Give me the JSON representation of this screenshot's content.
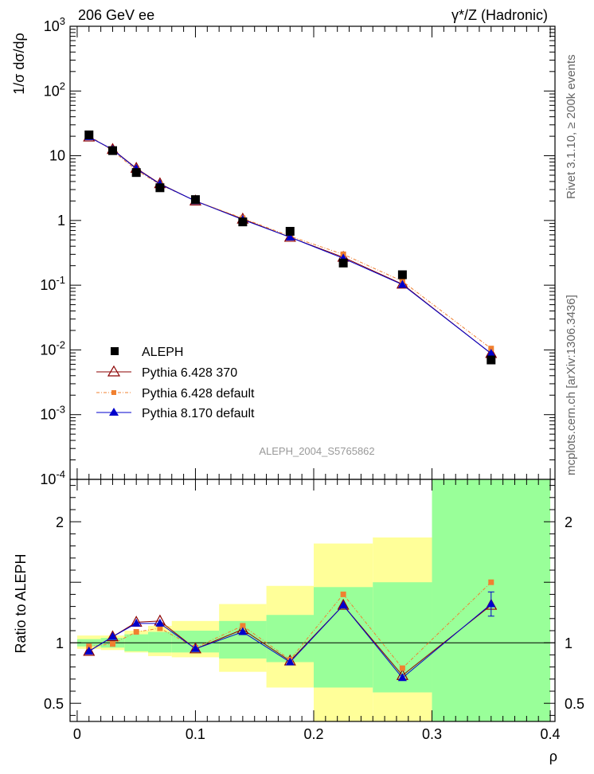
{
  "header": {
    "left": "206 GeV ee",
    "right": "γ*/Z (Hadronic)"
  },
  "side_labels": {
    "rivet": "Rivet 3.1.10, ≥ 200k events",
    "mcplots": "mcplots.cern.ch [arXiv:1306.3436]"
  },
  "watermark": "ALEPH_2004_S5765862",
  "colors": {
    "aleph": "#000000",
    "py6_370": "#8b0000",
    "py6_default": "#f08030",
    "py8": "#0000cc",
    "band_yellow": "#ffff99",
    "band_green": "#99ff99"
  },
  "chart_data": [
    {
      "type": "scatter",
      "scale": "log",
      "ylabel": "1/σ dσ/dρ",
      "ylim": [
        0.0001,
        1000
      ],
      "xlim": [
        -0.006,
        0.404
      ],
      "ytick_labels": [
        "10^-4",
        "10^-3",
        "10^-2",
        "10^-1",
        "1",
        "10",
        "10^2",
        "10^3"
      ],
      "x": [
        0.01,
        0.03,
        0.05,
        0.07,
        0.1,
        0.14,
        0.18,
        0.225,
        0.275,
        0.35
      ],
      "series": [
        {
          "name": "ALEPH",
          "values": [
            21,
            12,
            5.5,
            3.2,
            2.1,
            0.95,
            0.68,
            0.22,
            0.145,
            0.007
          ]
        },
        {
          "name": "Pythia 6.428 370",
          "values": [
            19.5,
            12.5,
            6.4,
            3.7,
            2.0,
            1.05,
            0.55,
            0.27,
            0.104,
            0.0088
          ]
        },
        {
          "name": "Pythia 6.428 default",
          "values": [
            20.5,
            11.9,
            6.0,
            3.6,
            2.0,
            1.08,
            0.57,
            0.3,
            0.115,
            0.0105
          ]
        },
        {
          "name": "Pythia 8.170 default",
          "values": [
            19.6,
            12.4,
            6.3,
            3.65,
            2.0,
            1.03,
            0.55,
            0.26,
            0.102,
            0.0088
          ]
        }
      ],
      "legend_position": "bottom-left"
    },
    {
      "type": "scatter",
      "ylabel": "Ratio to ALEPH",
      "xlabel": "ρ",
      "ylim": [
        0.35,
        2.35
      ],
      "xlim": [
        -0.006,
        0.404
      ],
      "ytick_labels": [
        "0.5",
        "1",
        "2"
      ],
      "xtick_labels": [
        "0",
        "0.1",
        "0.2",
        "0.3",
        "0.4"
      ],
      "reference_line": 1,
      "bins": [
        [
          0,
          0.02
        ],
        [
          0.02,
          0.04
        ],
        [
          0.04,
          0.06
        ],
        [
          0.06,
          0.08
        ],
        [
          0.08,
          0.12
        ],
        [
          0.12,
          0.16
        ],
        [
          0.16,
          0.2
        ],
        [
          0.2,
          0.25
        ],
        [
          0.25,
          0.3
        ],
        [
          0.3,
          0.4
        ]
      ],
      "green_band": [
        [
          0.97,
          1.03
        ],
        [
          0.96,
          1.04
        ],
        [
          0.93,
          1.07
        ],
        [
          0.92,
          1.09
        ],
        [
          0.92,
          1.1
        ],
        [
          0.87,
          1.18
        ],
        [
          0.84,
          1.23
        ],
        [
          0.63,
          1.46
        ],
        [
          0.59,
          1.5
        ],
        [
          0.35,
          2.35
        ]
      ],
      "yellow_band": [
        [
          0.95,
          1.06
        ],
        [
          0.94,
          1.06
        ],
        [
          0.92,
          1.1
        ],
        [
          0.89,
          1.14
        ],
        [
          0.88,
          1.18
        ],
        [
          0.76,
          1.32
        ],
        [
          0.63,
          1.47
        ],
        [
          0.35,
          1.82
        ],
        [
          0.35,
          1.87
        ],
        [
          0.35,
          2.35
        ]
      ],
      "x": [
        0.01,
        0.03,
        0.05,
        0.07,
        0.1,
        0.14,
        0.18,
        0.225,
        0.275,
        0.35
      ],
      "series": [
        {
          "name": "Pythia 6.428 370",
          "values": [
            0.93,
            1.05,
            1.17,
            1.18,
            0.95,
            1.11,
            0.85,
            1.31,
            0.73,
            1.31
          ]
        },
        {
          "name": "Pythia 6.428 default",
          "values": [
            0.97,
            0.99,
            1.09,
            1.12,
            0.96,
            1.14,
            0.86,
            1.4,
            0.79,
            1.5
          ]
        },
        {
          "name": "Pythia 8.170 default",
          "values": [
            0.93,
            1.05,
            1.16,
            1.16,
            0.95,
            1.09,
            0.84,
            1.31,
            0.71,
            1.32
          ]
        }
      ],
      "error_last_py8": [
        1.22,
        1.42
      ]
    }
  ]
}
